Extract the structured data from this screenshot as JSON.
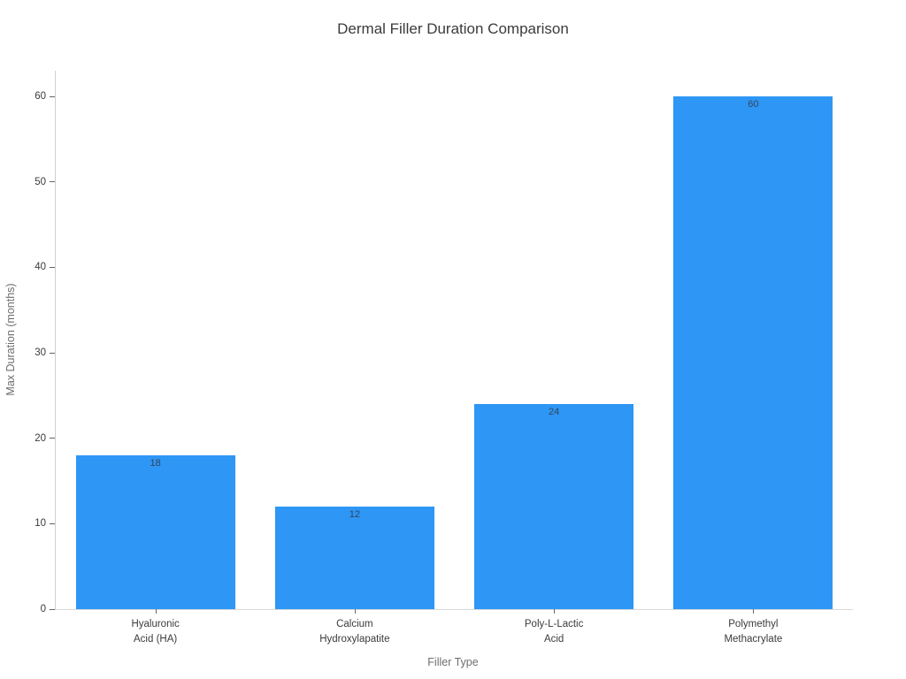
{
  "chart_data": {
    "type": "bar",
    "title": "Dermal Filler Duration Comparison",
    "xlabel": "Filler Type",
    "ylabel": "Max Duration (months)",
    "categories": [
      "Hyaluronic\nAcid (HA)",
      "Calcium\nHydroxylapatite",
      "Poly-L-Lactic\nAcid",
      "Polymethyl\nMethacrylate"
    ],
    "values": [
      18,
      12,
      24,
      60
    ],
    "value_labels": [
      "18",
      "12",
      "24",
      "60"
    ],
    "yticks": [
      0,
      10,
      20,
      30,
      40,
      50,
      60
    ],
    "ylim": [
      0,
      63
    ],
    "bar_width_fraction": 0.8,
    "grid": false,
    "legend": false,
    "colors": {
      "bar_fill": "#2e96f5",
      "value_label": "#34455c",
      "title_text": "#3b3b3b",
      "axis_title_text": "#6e6e6e",
      "tick_label_text": "#3b3b3b",
      "spine": "#cfcfcf"
    }
  }
}
